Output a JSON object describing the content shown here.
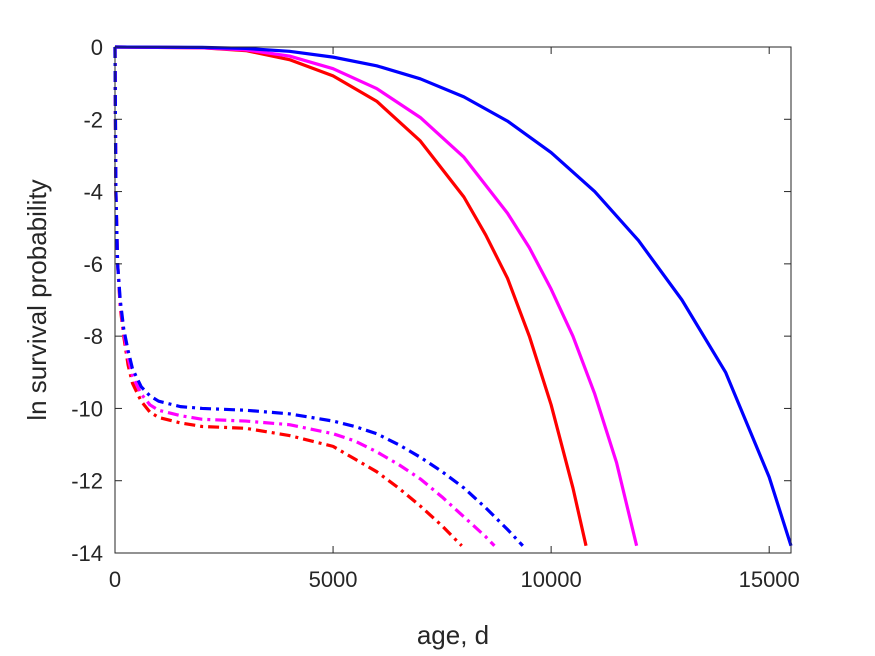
{
  "chart_data": {
    "type": "line",
    "title": "",
    "xlabel": "age, d",
    "ylabel": "ln survival probability",
    "xlim": [
      0,
      15500
    ],
    "ylim": [
      -14,
      0
    ],
    "xticks": [
      0,
      5000,
      10000,
      15000
    ],
    "yticks": [
      0,
      -2,
      -4,
      -6,
      -8,
      -10,
      -12,
      -14
    ],
    "xtick_labels": [
      "0",
      "5000",
      "10000",
      "15000"
    ],
    "ytick_labels": [
      "0",
      "-2",
      "-4",
      "-6",
      "-8",
      "-10",
      "-12",
      "-14"
    ],
    "grid": false,
    "legend": "none",
    "series": [
      {
        "color": "#ff0000",
        "style": "solid",
        "x": [
          0,
          2000,
          3000,
          4000,
          5000,
          6000,
          7000,
          8000,
          8500,
          9000,
          9500,
          10000,
          10500,
          10800
        ],
        "y": [
          0,
          -0.02,
          -0.1,
          -0.35,
          -0.8,
          -1.5,
          -2.6,
          -4.15,
          -5.2,
          -6.4,
          -8.0,
          -9.9,
          -12.2,
          -13.8
        ]
      },
      {
        "color": "#ff00ff",
        "style": "solid",
        "x": [
          0,
          2000,
          3000,
          4000,
          5000,
          6000,
          7000,
          8000,
          9000,
          9500,
          10000,
          10500,
          11000,
          11500,
          11960
        ],
        "y": [
          0,
          -0.02,
          -0.08,
          -0.25,
          -0.6,
          -1.15,
          -1.95,
          -3.05,
          -4.6,
          -5.55,
          -6.7,
          -8.0,
          -9.6,
          -11.5,
          -13.8
        ]
      },
      {
        "color": "#0000ff",
        "style": "solid",
        "x": [
          0,
          2000,
          3000,
          4000,
          5000,
          6000,
          7000,
          8000,
          9000,
          10000,
          11000,
          12000,
          13000,
          14000,
          15000,
          15500
        ],
        "y": [
          0,
          -0.01,
          -0.04,
          -0.12,
          -0.28,
          -0.52,
          -0.88,
          -1.38,
          -2.05,
          -2.92,
          -4.0,
          -5.35,
          -7.0,
          -9.0,
          -11.9,
          -13.8
        ]
      },
      {
        "color": "#ff0000",
        "style": "dashdot",
        "x": [
          0,
          20,
          60,
          120,
          200,
          300,
          400,
          600,
          800,
          1000,
          1500,
          2000,
          3000,
          4000,
          5000,
          5500,
          6000,
          6500,
          7000,
          7500,
          7950
        ],
        "y": [
          0,
          -4.0,
          -6.0,
          -7.2,
          -8.0,
          -8.8,
          -9.3,
          -9.8,
          -10.1,
          -10.25,
          -10.4,
          -10.5,
          -10.55,
          -10.75,
          -11.05,
          -11.4,
          -11.75,
          -12.2,
          -12.7,
          -13.25,
          -13.8
        ]
      },
      {
        "color": "#ff00ff",
        "style": "dashdot",
        "x": [
          0,
          20,
          60,
          120,
          200,
          300,
          400,
          600,
          800,
          1000,
          1500,
          2000,
          3000,
          4000,
          5000,
          5500,
          6000,
          6500,
          7000,
          7500,
          8000,
          8500,
          8700
        ],
        "y": [
          0,
          -4.0,
          -6.0,
          -7.1,
          -7.9,
          -8.6,
          -9.1,
          -9.6,
          -9.9,
          -10.05,
          -10.2,
          -10.3,
          -10.35,
          -10.45,
          -10.7,
          -10.9,
          -11.2,
          -11.55,
          -11.95,
          -12.45,
          -13.0,
          -13.55,
          -13.8
        ]
      },
      {
        "color": "#0000ff",
        "style": "dashdot",
        "x": [
          0,
          20,
          60,
          120,
          200,
          300,
          400,
          600,
          800,
          1000,
          1500,
          2000,
          3000,
          4000,
          5000,
          5500,
          6000,
          6500,
          7000,
          7500,
          8000,
          8500,
          9000,
          9350
        ],
        "y": [
          0,
          -4.0,
          -6.0,
          -7.0,
          -7.8,
          -8.4,
          -8.9,
          -9.4,
          -9.65,
          -9.8,
          -9.95,
          -10.0,
          -10.05,
          -10.15,
          -10.35,
          -10.5,
          -10.7,
          -11.0,
          -11.35,
          -11.75,
          -12.2,
          -12.75,
          -13.35,
          -13.8
        ]
      }
    ]
  }
}
